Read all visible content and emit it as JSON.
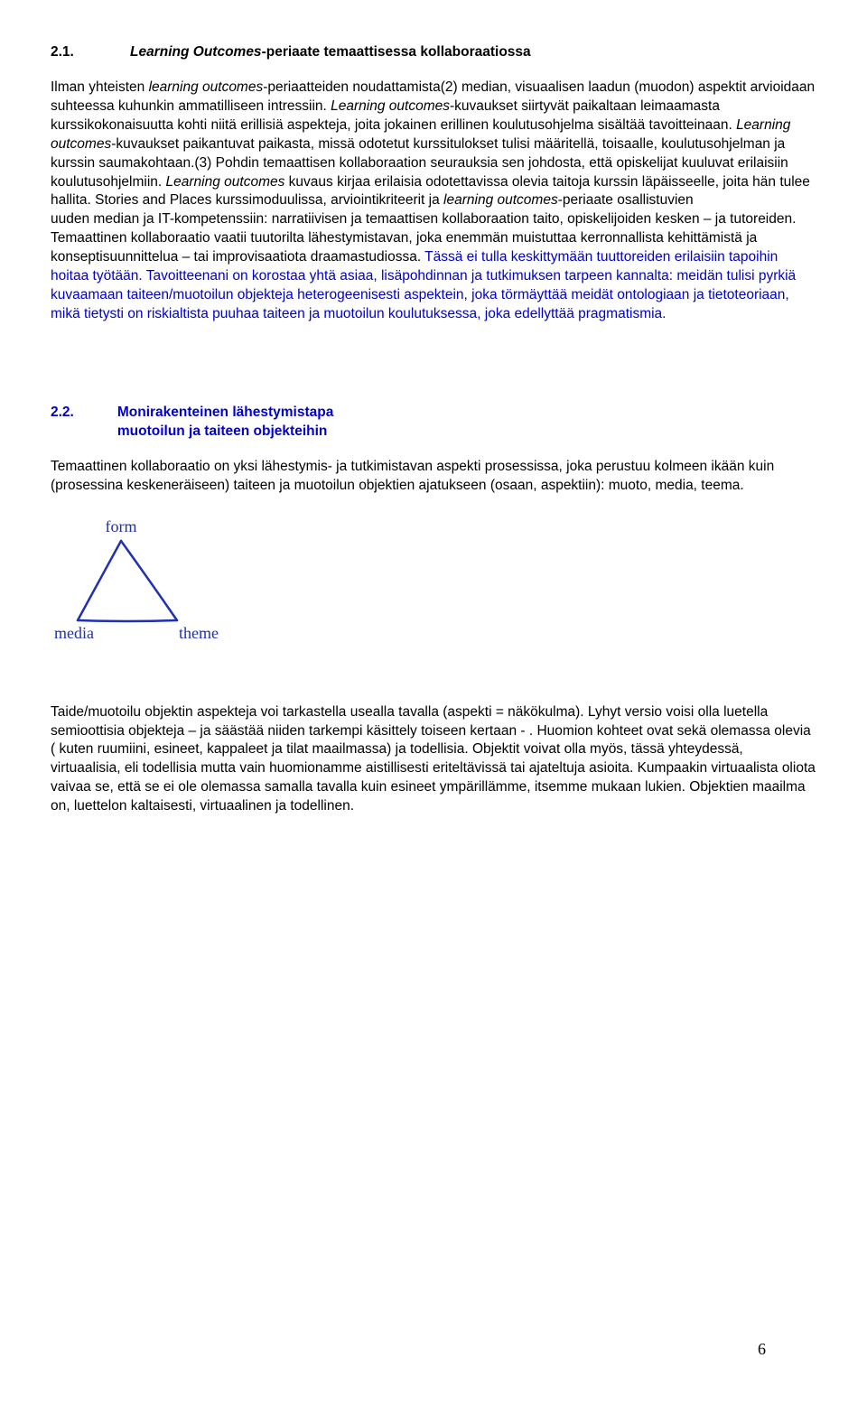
{
  "sec21": {
    "num": "2.1.",
    "title_pre": "Learning Outcomes",
    "title_post": "-periaate temaattisessa kollaboraatiossa",
    "p_full": "Ilman yhteisten {i}learning outcomes{/i}-periaatteiden noudattamista(2) median, visuaalisen laadun (muodon) aspektit arvioidaan suhteessa kuhunkin ammatilliseen intressiin. {i}Learning outcomes{/i}-kuvaukset siirtyvät paikaltaan leimaamasta kurssikokonaisuutta kohti niitä erillisiä aspekteja, joita jokainen erillinen koulutusohjelma sisältää tavoitteinaan. {i}Learning outcomes{/i}-kuvaukset paikantuvat paikasta, missä odotetut kurssitulokset tulisi määritellä, toisaalle, koulutusohjelman ja kurssin saumakohtaan.(3) Pohdin temaattisen kollaboraation seurauksia sen johdosta, että opiskelijat kuuluvat erilaisiin koulutusohjelmiin. {i}Learning outcomes{/i} kuvaus kirjaa erilaisia odotettavissa olevia taitoja kurssin läpäisseelle, joita hän tulee hallita. Stories and Places kurssimoduulissa, arviointikriteerit ja {i}learning outcomes{/i}-periaate osallistuvien",
    "p_tail": "uuden median ja IT-kompetenssiin: narratiivisen ja temaattisen kollaboraation taito, opiskelijoiden kesken – ja tutoreiden. Temaattinen kollaboraatio vaatii tuutorilta lähestymistavan, joka enemmän muistuttaa kerronnallista kehittämistä ja konseptisuunnittelua – tai improvisaatiota draamastudiossa.",
    "p_blue": " Tässä ei tulla keskittymään tuuttoreiden erilaisiin tapoihin hoitaa työtään. Tavoitteenani on korostaa yhtä asiaa, lisäpohdinnan ja tutkimuksen tarpeen kannalta: meidän tulisi pyrkiä kuvaamaan taiteen/muotoilun objekteja heterogeenisesti aspektein, joka törmäyttää meidät ontologiaan ja tietoteoriaan, mikä tietysti on riskialtista puuhaa taiteen ja muotoilun koulutuksessa, joka edellyttää pragmatismia."
  },
  "sec22": {
    "num": "2.2.",
    "title_l1": "Monirakenteinen lähestymistapa",
    "title_l2": "muotoilun ja taiteen objekteihin",
    "p1": "Temaattinen kollaboraatio on yksi lähestymis- ja tutkimistavan aspekti prosessissa, joka perustuu kolmeen ikään kuin (prosessina keskeneräiseen) taiteen ja muotoilun objektien ajatukseen (osaan, aspektiin): muoto, media, teema."
  },
  "triangle": {
    "top": "form",
    "left": "media",
    "right": "theme",
    "line_color": "#2030b0",
    "text_color": "#2030b0",
    "line_width": 2.5,
    "width": 190,
    "height": 150
  },
  "sec22b": {
    "p2": "Taide/muotoilu objektin aspekteja voi tarkastella usealla tavalla (aspekti = näkökulma). Lyhyt versio voisi olla luetella semioottisia objekteja – ja säästää niiden tarkempi käsittely toiseen kertaan - . Huomion kohteet ovat sekä olemassa olevia ( kuten ruumiini, esineet, kappaleet ja tilat maailmassa) ja todellisia. Objektit voivat olla myös, tässä yhteydessä, virtuaalisia, eli todellisia mutta vain huomionamme aistillisesti eriteltävissä tai ajateltuja asioita. Kumpaakin virtuaalista oliota vaivaa se, että se ei ole olemassa samalla tavalla kuin esineet ympärillämme, itsemme mukaan lukien. Objektien maailma on, luettelon kaltaisesti, virtuaalinen ja todellinen."
  },
  "page_number": "6"
}
